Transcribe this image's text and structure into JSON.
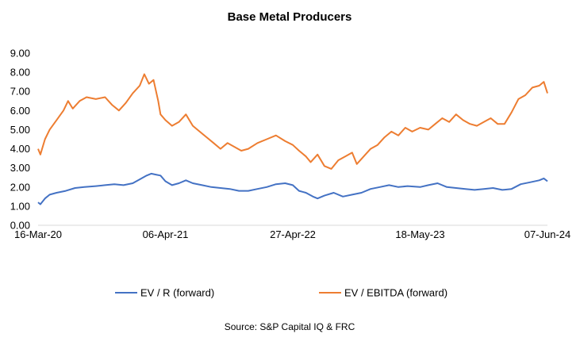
{
  "chart_data": {
    "type": "line",
    "title": "Base Metal Producers",
    "xlabel": "",
    "ylabel": "",
    "ylim": [
      0,
      9
    ],
    "y_ticks": [
      "0.00",
      "1.00",
      "2.00",
      "3.00",
      "4.00",
      "5.00",
      "6.00",
      "7.00",
      "8.00",
      "9.00"
    ],
    "x_range": [
      "2020-03-16",
      "2024-06-07"
    ],
    "x_ticks": [
      {
        "label": "16-Mar-20",
        "date": "2020-03-16"
      },
      {
        "label": "06-Apr-21",
        "date": "2021-04-06"
      },
      {
        "label": "27-Apr-22",
        "date": "2022-04-27"
      },
      {
        "label": "18-May-23",
        "date": "2023-05-18"
      },
      {
        "label": "07-Jun-24",
        "date": "2024-06-07"
      }
    ],
    "grid": false,
    "legend_position": "bottom",
    "source": "Source: S&P Capital IQ & FRC",
    "series": [
      {
        "name": "EV / R (forward)",
        "color": "#4472C4",
        "points": [
          [
            "2020-03-16",
            1.2
          ],
          [
            "2020-03-23",
            1.1
          ],
          [
            "2020-04-06",
            1.4
          ],
          [
            "2020-04-20",
            1.6
          ],
          [
            "2020-05-11",
            1.7
          ],
          [
            "2020-06-08",
            1.8
          ],
          [
            "2020-07-06",
            1.95
          ],
          [
            "2020-08-03",
            2.0
          ],
          [
            "2020-09-07",
            2.05
          ],
          [
            "2020-10-05",
            2.1
          ],
          [
            "2020-11-02",
            2.15
          ],
          [
            "2020-11-30",
            2.1
          ],
          [
            "2020-12-28",
            2.2
          ],
          [
            "2021-01-18",
            2.4
          ],
          [
            "2021-02-08",
            2.6
          ],
          [
            "2021-02-22",
            2.7
          ],
          [
            "2021-03-08",
            2.65
          ],
          [
            "2021-03-22",
            2.6
          ],
          [
            "2021-04-06",
            2.3
          ],
          [
            "2021-04-26",
            2.1
          ],
          [
            "2021-05-17",
            2.2
          ],
          [
            "2021-06-07",
            2.35
          ],
          [
            "2021-06-28",
            2.2
          ],
          [
            "2021-07-26",
            2.1
          ],
          [
            "2021-08-23",
            2.0
          ],
          [
            "2021-09-20",
            1.95
          ],
          [
            "2021-10-18",
            1.9
          ],
          [
            "2021-11-15",
            1.8
          ],
          [
            "2021-12-13",
            1.8
          ],
          [
            "2022-01-10",
            1.9
          ],
          [
            "2022-02-07",
            2.0
          ],
          [
            "2022-03-07",
            2.15
          ],
          [
            "2022-04-04",
            2.2
          ],
          [
            "2022-04-27",
            2.1
          ],
          [
            "2022-05-16",
            1.8
          ],
          [
            "2022-06-06",
            1.7
          ],
          [
            "2022-06-27",
            1.5
          ],
          [
            "2022-07-11",
            1.4
          ],
          [
            "2022-08-01",
            1.55
          ],
          [
            "2022-08-29",
            1.7
          ],
          [
            "2022-09-26",
            1.5
          ],
          [
            "2022-10-24",
            1.6
          ],
          [
            "2022-11-21",
            1.7
          ],
          [
            "2022-12-19",
            1.9
          ],
          [
            "2023-01-16",
            2.0
          ],
          [
            "2023-02-13",
            2.1
          ],
          [
            "2023-03-13",
            2.0
          ],
          [
            "2023-04-10",
            2.05
          ],
          [
            "2023-05-18",
            2.0
          ],
          [
            "2023-06-12",
            2.1
          ],
          [
            "2023-07-10",
            2.2
          ],
          [
            "2023-08-07",
            2.0
          ],
          [
            "2023-09-04",
            1.95
          ],
          [
            "2023-10-02",
            1.9
          ],
          [
            "2023-10-30",
            1.85
          ],
          [
            "2023-11-27",
            1.9
          ],
          [
            "2023-12-25",
            1.95
          ],
          [
            "2024-01-22",
            1.85
          ],
          [
            "2024-02-19",
            1.9
          ],
          [
            "2024-03-18",
            2.15
          ],
          [
            "2024-04-15",
            2.25
          ],
          [
            "2024-05-13",
            2.35
          ],
          [
            "2024-05-27",
            2.45
          ],
          [
            "2024-06-07",
            2.3
          ]
        ]
      },
      {
        "name": "EV / EBITDA (forward)",
        "color": "#ED7D31",
        "points": [
          [
            "2020-03-16",
            4.0
          ],
          [
            "2020-03-23",
            3.7
          ],
          [
            "2020-04-06",
            4.5
          ],
          [
            "2020-04-20",
            5.0
          ],
          [
            "2020-05-11",
            5.5
          ],
          [
            "2020-06-01",
            6.0
          ],
          [
            "2020-06-15",
            6.5
          ],
          [
            "2020-06-29",
            6.1
          ],
          [
            "2020-07-20",
            6.5
          ],
          [
            "2020-08-10",
            6.7
          ],
          [
            "2020-09-07",
            6.6
          ],
          [
            "2020-10-05",
            6.7
          ],
          [
            "2020-10-26",
            6.3
          ],
          [
            "2020-11-16",
            6.0
          ],
          [
            "2020-12-07",
            6.4
          ],
          [
            "2020-12-28",
            6.9
          ],
          [
            "2021-01-18",
            7.3
          ],
          [
            "2021-02-01",
            7.9
          ],
          [
            "2021-02-15",
            7.4
          ],
          [
            "2021-03-01",
            7.6
          ],
          [
            "2021-03-15",
            6.5
          ],
          [
            "2021-03-22",
            5.8
          ],
          [
            "2021-04-06",
            5.5
          ],
          [
            "2021-04-26",
            5.2
          ],
          [
            "2021-05-17",
            5.4
          ],
          [
            "2021-06-07",
            5.8
          ],
          [
            "2021-06-28",
            5.2
          ],
          [
            "2021-07-19",
            4.9
          ],
          [
            "2021-08-09",
            4.6
          ],
          [
            "2021-08-30",
            4.3
          ],
          [
            "2021-09-20",
            4.0
          ],
          [
            "2021-10-11",
            4.3
          ],
          [
            "2021-11-01",
            4.1
          ],
          [
            "2021-11-22",
            3.9
          ],
          [
            "2021-12-13",
            4.0
          ],
          [
            "2022-01-10",
            4.3
          ],
          [
            "2022-02-07",
            4.5
          ],
          [
            "2022-03-07",
            4.7
          ],
          [
            "2022-04-04",
            4.4
          ],
          [
            "2022-04-27",
            4.2
          ],
          [
            "2022-05-16",
            3.9
          ],
          [
            "2022-06-06",
            3.6
          ],
          [
            "2022-06-20",
            3.3
          ],
          [
            "2022-07-11",
            3.7
          ],
          [
            "2022-08-01",
            3.1
          ],
          [
            "2022-08-22",
            2.95
          ],
          [
            "2022-09-12",
            3.4
          ],
          [
            "2022-10-03",
            3.6
          ],
          [
            "2022-10-24",
            3.8
          ],
          [
            "2022-11-07",
            3.2
          ],
          [
            "2022-11-28",
            3.6
          ],
          [
            "2022-12-19",
            4.0
          ],
          [
            "2023-01-09",
            4.2
          ],
          [
            "2023-01-30",
            4.6
          ],
          [
            "2023-02-20",
            4.9
          ],
          [
            "2023-03-13",
            4.7
          ],
          [
            "2023-04-03",
            5.1
          ],
          [
            "2023-04-24",
            4.9
          ],
          [
            "2023-05-18",
            5.1
          ],
          [
            "2023-06-12",
            5.0
          ],
          [
            "2023-07-03",
            5.3
          ],
          [
            "2023-07-24",
            5.6
          ],
          [
            "2023-08-14",
            5.4
          ],
          [
            "2023-09-04",
            5.8
          ],
          [
            "2023-09-25",
            5.5
          ],
          [
            "2023-10-16",
            5.3
          ],
          [
            "2023-11-06",
            5.2
          ],
          [
            "2023-11-27",
            5.4
          ],
          [
            "2023-12-18",
            5.6
          ],
          [
            "2024-01-08",
            5.3
          ],
          [
            "2024-01-29",
            5.3
          ],
          [
            "2024-02-19",
            5.9
          ],
          [
            "2024-03-11",
            6.6
          ],
          [
            "2024-04-01",
            6.8
          ],
          [
            "2024-04-22",
            7.2
          ],
          [
            "2024-05-13",
            7.3
          ],
          [
            "2024-05-27",
            7.5
          ],
          [
            "2024-06-07",
            6.9
          ]
        ]
      }
    ]
  }
}
